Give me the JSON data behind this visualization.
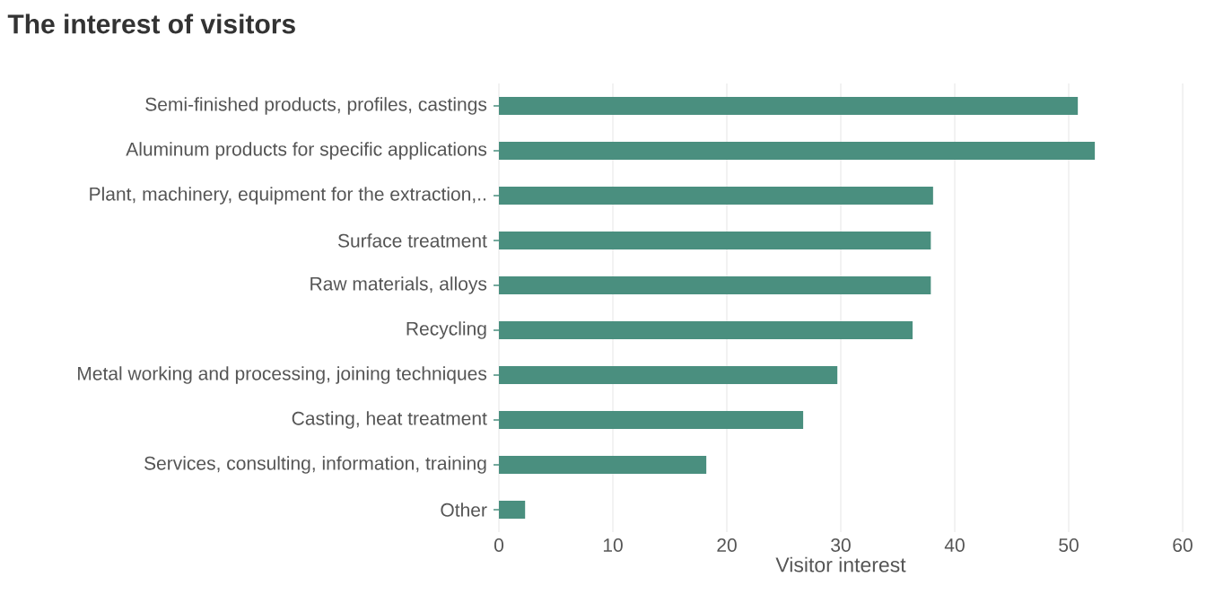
{
  "chart_data": {
    "type": "bar",
    "orientation": "horizontal",
    "title": "The interest of visitors",
    "xlabel": "Visitor interest",
    "categories": [
      "Semi-finished products, profiles, castings",
      "Aluminum products for specific applications",
      "Plant, machinery, equipment for the extraction,..",
      "Surface treatment",
      "Raw materials, alloys",
      "Recycling",
      "Metal working and processing, joining techniques",
      "Casting, heat treatment",
      "Services, consulting, information, training",
      "Other"
    ],
    "values": [
      50.8,
      52.3,
      38.1,
      37.9,
      37.9,
      36.3,
      29.7,
      26.7,
      18.2,
      2.3
    ],
    "color": "#4a8f7f",
    "xlim": [
      0,
      60
    ],
    "xticks": [
      0,
      10,
      20,
      30,
      40,
      50,
      60
    ],
    "grid": "x"
  }
}
